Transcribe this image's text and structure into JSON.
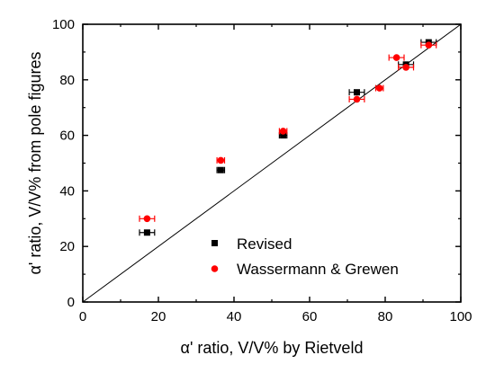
{
  "chart_data": {
    "type": "scatter",
    "xlabel": "α' ratio, V/V% by Rietveld",
    "ylabel": "α' ratio, V/V% from pole figures",
    "xlim": [
      0,
      100
    ],
    "ylim": [
      0,
      100
    ],
    "xticks": [
      "0",
      "20",
      "40",
      "60",
      "80",
      "100"
    ],
    "yticks": [
      "0",
      "20",
      "40",
      "60",
      "80",
      "100"
    ],
    "grid": false,
    "legend_position": "bottom-right",
    "reference_line": {
      "from": [
        0,
        0
      ],
      "to": [
        100,
        100
      ]
    },
    "series": [
      {
        "name": "Revised",
        "marker": "square",
        "color": "#000000",
        "points": [
          {
            "x": 17,
            "y": 25,
            "xerr": 2
          },
          {
            "x": 36.5,
            "y": 47.5,
            "xerr": 1
          },
          {
            "x": 53,
            "y": 60,
            "xerr": 1
          },
          {
            "x": 72.5,
            "y": 75.5,
            "xerr": 2
          },
          {
            "x": 85.5,
            "y": 85.5,
            "xerr": 2
          },
          {
            "x": 91.5,
            "y": 93.5,
            "xerr": 2
          }
        ]
      },
      {
        "name": "Wassermann & Grewen",
        "marker": "circle",
        "color": "#ff0000",
        "points": [
          {
            "x": 17,
            "y": 30,
            "xerr": 2
          },
          {
            "x": 36.5,
            "y": 51,
            "xerr": 1
          },
          {
            "x": 53,
            "y": 61.5,
            "xerr": 1
          },
          {
            "x": 72.5,
            "y": 73,
            "xerr": 2
          },
          {
            "x": 78.5,
            "y": 77,
            "xerr": 1
          },
          {
            "x": 83,
            "y": 88,
            "xerr": 2
          },
          {
            "x": 85.5,
            "y": 84.5,
            "xerr": 2
          },
          {
            "x": 91.5,
            "y": 92.5,
            "xerr": 2
          }
        ]
      }
    ]
  }
}
